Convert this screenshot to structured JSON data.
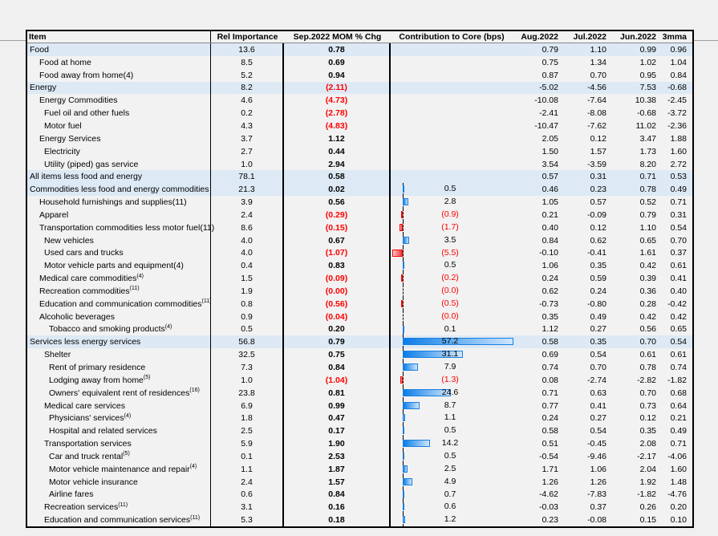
{
  "headers": {
    "item": "Item",
    "rel": "Rel Importance",
    "mom": "Sep.2022 MOM % Chg",
    "contrib": "Contribution to Core (bps)",
    "aug": "Aug.2022",
    "jul": "Jul.2022",
    "jun": "Jun.2022",
    "mma": "3mma"
  },
  "colors": {
    "highlight": "#dde9f5",
    "negative": "#ff0000",
    "bar_positive": "#0a7de8"
  },
  "rows": [
    {
      "label": "Food",
      "sup": "",
      "level": 0,
      "hl": true,
      "rel": "13.6",
      "mom": "0.78",
      "contrib": null,
      "contrib_text": "",
      "aug": "0.79",
      "jul": "1.10",
      "jun": "0.99",
      "mma": "0.96"
    },
    {
      "label": "Food at home",
      "sup": "",
      "level": 1,
      "hl": false,
      "rel": "8.5",
      "mom": "0.69",
      "contrib": null,
      "contrib_text": "",
      "aug": "0.75",
      "jul": "1.34",
      "jun": "1.02",
      "mma": "1.04"
    },
    {
      "label": "Food away from home(4)",
      "sup": "",
      "level": 1,
      "hl": false,
      "rel": "5.2",
      "mom": "0.94",
      "contrib": null,
      "contrib_text": "",
      "aug": "0.87",
      "jul": "0.70",
      "jun": "0.95",
      "mma": "0.84"
    },
    {
      "label": "Energy",
      "sup": "",
      "level": 0,
      "hl": true,
      "rel": "8.2",
      "mom": "(2.11)",
      "contrib": null,
      "contrib_text": "",
      "aug": "-5.02",
      "jul": "-4.56",
      "jun": "7.53",
      "mma": "-0.68"
    },
    {
      "label": "Energy Commodities",
      "sup": "",
      "level": 1,
      "hl": false,
      "rel": "4.6",
      "mom": "(4.73)",
      "contrib": null,
      "contrib_text": "",
      "aug": "-10.08",
      "jul": "-7.64",
      "jun": "10.38",
      "mma": "-2.45"
    },
    {
      "label": "Fuel oil and other fuels",
      "sup": "",
      "level": 2,
      "hl": false,
      "rel": "0.2",
      "mom": "(2.78)",
      "contrib": null,
      "contrib_text": "",
      "aug": "-2.41",
      "jul": "-8.08",
      "jun": "-0.68",
      "mma": "-3.72"
    },
    {
      "label": "Motor fuel",
      "sup": "",
      "level": 2,
      "hl": false,
      "rel": "4.3",
      "mom": "(4.83)",
      "contrib": null,
      "contrib_text": "",
      "aug": "-10.47",
      "jul": "-7.62",
      "jun": "11.02",
      "mma": "-2.36"
    },
    {
      "label": "Energy Services",
      "sup": "",
      "level": 1,
      "hl": false,
      "rel": "3.7",
      "mom": "1.12",
      "contrib": null,
      "contrib_text": "",
      "aug": "2.05",
      "jul": "0.12",
      "jun": "3.47",
      "mma": "1.88"
    },
    {
      "label": "Electricity",
      "sup": "",
      "level": 2,
      "hl": false,
      "rel": "2.7",
      "mom": "0.44",
      "contrib": null,
      "contrib_text": "",
      "aug": "1.50",
      "jul": "1.57",
      "jun": "1.73",
      "mma": "1.60"
    },
    {
      "label": "Utility (piped) gas service",
      "sup": "",
      "level": 2,
      "hl": false,
      "rel": "1.0",
      "mom": "2.94",
      "contrib": null,
      "contrib_text": "",
      "aug": "3.54",
      "jul": "-3.59",
      "jun": "8.20",
      "mma": "2.72"
    },
    {
      "label": "All items less food and energy",
      "sup": "",
      "level": 0,
      "hl": true,
      "rel": "78.1",
      "mom": "0.58",
      "contrib": null,
      "contrib_text": "",
      "aug": "0.57",
      "jul": "0.31",
      "jun": "0.71",
      "mma": "0.53"
    },
    {
      "label": "Commodities less food and energy commodities",
      "sup": "",
      "level": 0,
      "hl": true,
      "rel": "21.3",
      "mom": "0.02",
      "contrib": 0.5,
      "contrib_text": "0.5",
      "aug": "0.46",
      "jul": "0.23",
      "jun": "0.78",
      "mma": "0.49"
    },
    {
      "label": "Household furnishings and supplies(11)",
      "sup": "",
      "level": 1,
      "hl": false,
      "rel": "3.9",
      "mom": "0.56",
      "contrib": 2.8,
      "contrib_text": "2.8",
      "aug": "1.05",
      "jul": "0.57",
      "jun": "0.52",
      "mma": "0.71"
    },
    {
      "label": "Apparel",
      "sup": "",
      "level": 1,
      "hl": false,
      "rel": "2.4",
      "mom": "(0.29)",
      "contrib": -0.9,
      "contrib_text": "(0.9)",
      "aug": "0.21",
      "jul": "-0.09",
      "jun": "0.79",
      "mma": "0.31"
    },
    {
      "label": "Transportation commodities less motor fuel(11)",
      "sup": "",
      "level": 1,
      "hl": false,
      "rel": "8.6",
      "mom": "(0.15)",
      "contrib": -1.7,
      "contrib_text": "(1.7)",
      "aug": "0.40",
      "jul": "0.12",
      "jun": "1.10",
      "mma": "0.54"
    },
    {
      "label": "New vehicles",
      "sup": "",
      "level": 2,
      "hl": false,
      "rel": "4.0",
      "mom": "0.67",
      "contrib": 3.5,
      "contrib_text": "3.5",
      "aug": "0.84",
      "jul": "0.62",
      "jun": "0.65",
      "mma": "0.70"
    },
    {
      "label": "Used cars and trucks",
      "sup": "",
      "level": 2,
      "hl": false,
      "rel": "4.0",
      "mom": "(1.07)",
      "contrib": -5.5,
      "contrib_text": "(5.5)",
      "aug": "-0.10",
      "jul": "-0.41",
      "jun": "1.61",
      "mma": "0.37"
    },
    {
      "label": "Motor vehicle parts and equipment(4)",
      "sup": "",
      "level": 2,
      "hl": false,
      "rel": "0.4",
      "mom": "0.83",
      "contrib": 0.5,
      "contrib_text": "0.5",
      "aug": "1.06",
      "jul": "0.35",
      "jun": "0.42",
      "mma": "0.61"
    },
    {
      "label": "Medical care commodities",
      "sup": "(4)",
      "level": 1,
      "hl": false,
      "rel": "1.5",
      "mom": "(0.09)",
      "contrib": -0.2,
      "contrib_text": "(0.2)",
      "aug": "0.24",
      "jul": "0.59",
      "jun": "0.39",
      "mma": "0.41"
    },
    {
      "label": "Recreation commodities",
      "sup": "(11)",
      "level": 1,
      "hl": false,
      "rel": "1.9",
      "mom": "(0.00)",
      "contrib": 0,
      "contrib_text": "(0.0)",
      "aug": "0.62",
      "jul": "0.24",
      "jun": "0.36",
      "mma": "0.40"
    },
    {
      "label": "Education and communication commodities",
      "sup": "(11)",
      "level": 1,
      "hl": false,
      "rel": "0.8",
      "mom": "(0.56)",
      "contrib": -0.5,
      "contrib_text": "(0.5)",
      "aug": "-0.73",
      "jul": "-0.80",
      "jun": "0.28",
      "mma": "-0.42"
    },
    {
      "label": "Alcoholic beverages",
      "sup": "",
      "level": 1,
      "hl": false,
      "rel": "0.9",
      "mom": "(0.04)",
      "contrib": 0,
      "contrib_text": "(0.0)",
      "aug": "0.35",
      "jul": "0.49",
      "jun": "0.42",
      "mma": "0.42"
    },
    {
      "label": "Tobacco and smoking products",
      "sup": "(4)",
      "level": 3,
      "hl": false,
      "rel": "0.5",
      "mom": "0.20",
      "contrib": 0.1,
      "contrib_text": "0.1",
      "aug": "1.12",
      "jul": "0.27",
      "jun": "0.56",
      "mma": "0.65"
    },
    {
      "label": "Services less energy services",
      "sup": "",
      "level": 0,
      "hl": true,
      "rel": "56.8",
      "mom": "0.79",
      "contrib": 57.2,
      "contrib_text": "57.2",
      "aug": "0.58",
      "jul": "0.35",
      "jun": "0.70",
      "mma": "0.54"
    },
    {
      "label": "Shelter",
      "sup": "",
      "level": 2,
      "hl": false,
      "rel": "32.5",
      "mom": "0.75",
      "contrib": 31.1,
      "contrib_text": "31.1",
      "aug": "0.69",
      "jul": "0.54",
      "jun": "0.61",
      "mma": "0.61"
    },
    {
      "label": "Rent of primary residence",
      "sup": "",
      "level": 3,
      "hl": false,
      "rel": "7.3",
      "mom": "0.84",
      "contrib": 7.9,
      "contrib_text": "7.9",
      "aug": "0.74",
      "jul": "0.70",
      "jun": "0.78",
      "mma": "0.74"
    },
    {
      "label": "Lodging away from home",
      "sup": "(5)",
      "level": 3,
      "hl": false,
      "rel": "1.0",
      "mom": "(1.04)",
      "contrib": -1.3,
      "contrib_text": "(1.3)",
      "aug": "0.08",
      "jul": "-2.74",
      "jun": "-2.82",
      "mma": "-1.82"
    },
    {
      "label": "Owners' equivalent rent of residences",
      "sup": "(16)",
      "level": 3,
      "hl": false,
      "rel": "23.8",
      "mom": "0.81",
      "contrib": 24.6,
      "contrib_text": "24.6",
      "aug": "0.71",
      "jul": "0.63",
      "jun": "0.70",
      "mma": "0.68"
    },
    {
      "label": "Medical care services",
      "sup": "",
      "level": 2,
      "hl": false,
      "rel": "6.9",
      "mom": "0.99",
      "contrib": 8.7,
      "contrib_text": "8.7",
      "aug": "0.77",
      "jul": "0.41",
      "jun": "0.73",
      "mma": "0.64"
    },
    {
      "label": "Physicians' services",
      "sup": "(4)",
      "level": 3,
      "hl": false,
      "rel": "1.8",
      "mom": "0.47",
      "contrib": 1.1,
      "contrib_text": "1.1",
      "aug": "0.24",
      "jul": "0.27",
      "jun": "0.12",
      "mma": "0.21"
    },
    {
      "label": "Hospital and related services",
      "sup": "",
      "level": 3,
      "hl": false,
      "rel": "2.5",
      "mom": "0.17",
      "contrib": 0.5,
      "contrib_text": "0.5",
      "aug": "0.58",
      "jul": "0.54",
      "jun": "0.35",
      "mma": "0.49"
    },
    {
      "label": "Transportation services",
      "sup": "",
      "level": 2,
      "hl": false,
      "rel": "5.9",
      "mom": "1.90",
      "contrib": 14.2,
      "contrib_text": "14.2",
      "aug": "0.51",
      "jul": "-0.45",
      "jun": "2.08",
      "mma": "0.71"
    },
    {
      "label": "Car and truck rental",
      "sup": "(5)",
      "level": 3,
      "hl": false,
      "rel": "0.1",
      "mom": "2.53",
      "contrib": 0.5,
      "contrib_text": "0.5",
      "aug": "-0.54",
      "jul": "-9.46",
      "jun": "-2.17",
      "mma": "-4.06"
    },
    {
      "label": "Motor vehicle maintenance and repair",
      "sup": "(4)",
      "level": 3,
      "hl": false,
      "rel": "1.1",
      "mom": "1.87",
      "contrib": 2.5,
      "contrib_text": "2.5",
      "aug": "1.71",
      "jul": "1.06",
      "jun": "2.04",
      "mma": "1.60"
    },
    {
      "label": "Motor vehicle insurance",
      "sup": "",
      "level": 3,
      "hl": false,
      "rel": "2.4",
      "mom": "1.57",
      "contrib": 4.9,
      "contrib_text": "4.9",
      "aug": "1.26",
      "jul": "1.26",
      "jun": "1.92",
      "mma": "1.48"
    },
    {
      "label": "Airline fares",
      "sup": "",
      "level": 3,
      "hl": false,
      "rel": "0.6",
      "mom": "0.84",
      "contrib": 0.7,
      "contrib_text": "0.7",
      "aug": "-4.62",
      "jul": "-7.83",
      "jun": "-1.82",
      "mma": "-4.76"
    },
    {
      "label": "Recreation services",
      "sup": "(11)",
      "level": 2,
      "hl": false,
      "rel": "3.1",
      "mom": "0.16",
      "contrib": 0.6,
      "contrib_text": "0.6",
      "aug": "-0.03",
      "jul": "0.37",
      "jun": "0.26",
      "mma": "0.20"
    },
    {
      "label": "Education and communication services",
      "sup": "(11)",
      "level": 2,
      "hl": false,
      "rel": "5.3",
      "mom": "0.18",
      "contrib": 1.2,
      "contrib_text": "1.2",
      "aug": "0.23",
      "jul": "-0.08",
      "jun": "0.15",
      "mma": "0.10"
    }
  ]
}
